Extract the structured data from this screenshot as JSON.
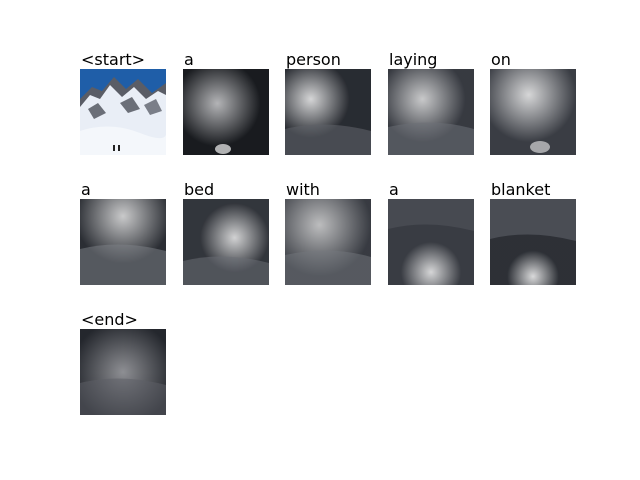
{
  "figure": {
    "tokens": [
      "<start>",
      "a",
      "person",
      "laying",
      "on",
      "a",
      "bed",
      "with",
      "a",
      "blanket",
      "<end>"
    ],
    "panels": [
      {
        "token": "<start>",
        "kind": "image"
      },
      {
        "token": "a",
        "kind": "attention"
      },
      {
        "token": "person",
        "kind": "attention"
      },
      {
        "token": "laying",
        "kind": "attention"
      },
      {
        "token": "on",
        "kind": "attention"
      },
      {
        "token": "a",
        "kind": "attention"
      },
      {
        "token": "bed",
        "kind": "attention"
      },
      {
        "token": "with",
        "kind": "attention"
      },
      {
        "token": "a",
        "kind": "attention"
      },
      {
        "token": "blanket",
        "kind": "attention"
      },
      {
        "token": "<end>",
        "kind": "attention"
      }
    ]
  },
  "colors": {
    "sky": "#1f5ea8",
    "snow": "#e8eef5",
    "rock": "#4a4a52",
    "dark": "#111418"
  }
}
